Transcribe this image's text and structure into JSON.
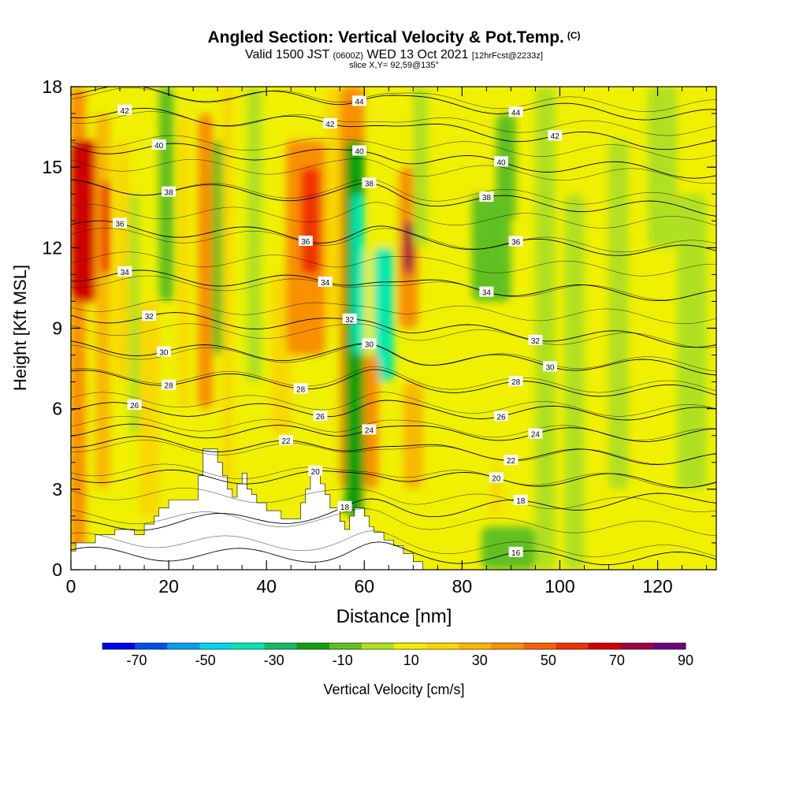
{
  "chart_data": {
    "type": "heatmap",
    "title": "Angled Section: Vertical Velocity & Pot.Temp.",
    "title_suffix": "(C)",
    "subtitle_pre": "Valid 1500 JST",
    "subtitle_utc": "(0600Z)",
    "subtitle_mid": "WED 13 Oct 2021",
    "subtitle_fcst": "[12hrFcst@2233z]",
    "slice_label": "slice X,Y= 92,59@135°",
    "xlabel": "Distance [nm]",
    "ylabel": "Height [Kft MSL]",
    "xlim": [
      0,
      132
    ],
    "ylim": [
      0,
      18
    ],
    "x_ticks": [
      0,
      20,
      40,
      60,
      80,
      100,
      120
    ],
    "y_ticks": [
      0,
      3,
      6,
      9,
      12,
      15,
      18
    ],
    "colorbar": {
      "label": "Vertical Velocity [cm/s]",
      "ticks": [
        -70,
        -50,
        -30,
        -10,
        10,
        30,
        50,
        70,
        90
      ],
      "bounds": [
        -80,
        90
      ],
      "colors": [
        "#0000f0",
        "#0050f0",
        "#00a0f0",
        "#00d8f0",
        "#00e8b0",
        "#10c060",
        "#10a010",
        "#60c020",
        "#b0e020",
        "#f0f000",
        "#f8d800",
        "#f8b800",
        "#f89000",
        "#f86000",
        "#f03000",
        "#d00000",
        "#a00040",
        "#700080"
      ]
    },
    "velocity_field": [
      {
        "xmin": 0,
        "xmax": 3,
        "ymin": 0.8,
        "ymax": 18,
        "value": 40
      },
      {
        "xmin": 0,
        "xmax": 6,
        "ymin": 10,
        "ymax": 16,
        "value": 62
      },
      {
        "xmin": 5,
        "xmax": 8,
        "ymin": 3,
        "ymax": 17,
        "value": 30
      },
      {
        "xmin": 6,
        "xmax": 8,
        "ymin": 11,
        "ymax": 14.5,
        "value": 55
      },
      {
        "xmin": 9,
        "xmax": 12,
        "ymin": 7,
        "ymax": 16,
        "value": 20
      },
      {
        "xmin": 12,
        "xmax": 14,
        "ymin": 5,
        "ymax": 14,
        "value": -3
      },
      {
        "xmin": 14,
        "xmax": 18,
        "ymin": 2,
        "ymax": 10,
        "value": 15
      },
      {
        "xmin": 18,
        "xmax": 21,
        "ymin": 10,
        "ymax": 18,
        "value": -12
      },
      {
        "xmin": 22,
        "xmax": 24,
        "ymin": 6,
        "ymax": 17,
        "value": 20
      },
      {
        "xmin": 26,
        "xmax": 29,
        "ymin": 6,
        "ymax": 17,
        "value": 40
      },
      {
        "xmin": 29,
        "xmax": 31,
        "ymin": 8,
        "ymax": 16,
        "value": -5
      },
      {
        "xmin": 31,
        "xmax": 33,
        "ymin": 3,
        "ymax": 18,
        "value": 15
      },
      {
        "xmin": 36,
        "xmax": 39,
        "ymin": 7,
        "ymax": 18,
        "value": -3
      },
      {
        "xmin": 41,
        "xmax": 45,
        "ymin": 5,
        "ymax": 11,
        "value": 20
      },
      {
        "xmin": 44,
        "xmax": 52,
        "ymin": 8,
        "ymax": 16,
        "value": 40
      },
      {
        "xmin": 47,
        "xmax": 51,
        "ymin": 11,
        "ymax": 15,
        "value": 55
      },
      {
        "xmin": 52,
        "xmax": 55,
        "ymin": 9,
        "ymax": 18,
        "value": 20
      },
      {
        "xmin": 55,
        "xmax": 60,
        "ymin": 3,
        "ymax": 18,
        "value": 35
      },
      {
        "xmin": 56,
        "xmax": 60,
        "ymin": 2,
        "ymax": 16,
        "value": -15
      },
      {
        "xmin": 57.5,
        "xmax": 60,
        "ymin": 8,
        "ymax": 14,
        "value": -35
      },
      {
        "xmin": 60,
        "xmax": 64,
        "ymin": 2,
        "ymax": 12,
        "value": 10
      },
      {
        "xmin": 62,
        "xmax": 66,
        "ymin": 7,
        "ymax": 12,
        "value": -35
      },
      {
        "xmin": 60,
        "xmax": 63,
        "ymin": 3,
        "ymax": 8,
        "value": 40
      },
      {
        "xmin": 62,
        "xmax": 68,
        "ymin": 12,
        "ymax": 18,
        "value": 10
      },
      {
        "xmin": 67,
        "xmax": 71,
        "ymin": 9,
        "ymax": 15,
        "value": 40
      },
      {
        "xmin": 68,
        "xmax": 70,
        "ymin": 11,
        "ymax": 13,
        "value": 75
      },
      {
        "xmin": 68,
        "xmax": 72,
        "ymin": 3,
        "ymax": 7,
        "value": 25
      },
      {
        "xmin": 70,
        "xmax": 73,
        "ymin": 12,
        "ymax": 18,
        "value": -3
      },
      {
        "xmin": 82,
        "xmax": 90,
        "ymin": 10,
        "ymax": 14,
        "value": -12
      },
      {
        "xmin": 87,
        "xmax": 91,
        "ymin": 13,
        "ymax": 17,
        "value": -5
      },
      {
        "xmin": 86,
        "xmax": 88,
        "ymin": 2,
        "ymax": 4,
        "value": 15
      },
      {
        "xmin": 95,
        "xmax": 99,
        "ymin": 0,
        "ymax": 18,
        "value": -3
      },
      {
        "xmin": 101,
        "xmax": 105,
        "ymin": 0,
        "ymax": 14,
        "value": -3
      },
      {
        "xmin": 110,
        "xmax": 114,
        "ymin": 3,
        "ymax": 16,
        "value": -3
      },
      {
        "xmin": 118,
        "xmax": 124,
        "ymin": 12,
        "ymax": 18,
        "value": -3
      },
      {
        "xmin": 124,
        "xmax": 130,
        "ymin": 3,
        "ymax": 14,
        "value": -3
      },
      {
        "xmin": 84,
        "xmax": 95,
        "ymin": 0,
        "ymax": 1.6,
        "value": -5
      }
    ],
    "terrain": [
      [
        0,
        0.7
      ],
      [
        1,
        0.7
      ],
      [
        1,
        1.0
      ],
      [
        5,
        1.0
      ],
      [
        5,
        1.3
      ],
      [
        9,
        1.3
      ],
      [
        9,
        1.5
      ],
      [
        13,
        1.5
      ],
      [
        13,
        1.3
      ],
      [
        15,
        1.3
      ],
      [
        15,
        1.7
      ],
      [
        17,
        1.7
      ],
      [
        17,
        2.0
      ],
      [
        18,
        2.0
      ],
      [
        18,
        2.3
      ],
      [
        20,
        2.3
      ],
      [
        20,
        2.6
      ],
      [
        26,
        2.6
      ],
      [
        26,
        3.5
      ],
      [
        27,
        3.5
      ],
      [
        27,
        4.5
      ],
      [
        30,
        4.5
      ],
      [
        30,
        4.0
      ],
      [
        31,
        4.0
      ],
      [
        31,
        3.5
      ],
      [
        32,
        3.5
      ],
      [
        32,
        3.0
      ],
      [
        33,
        3.0
      ],
      [
        33,
        2.7
      ],
      [
        34,
        2.7
      ],
      [
        34,
        3.2
      ],
      [
        35,
        3.2
      ],
      [
        35,
        3.6
      ],
      [
        36,
        3.6
      ],
      [
        36,
        3.0
      ],
      [
        37,
        3.0
      ],
      [
        37,
        2.8
      ],
      [
        38,
        2.8
      ],
      [
        38,
        2.5
      ],
      [
        40,
        2.5
      ],
      [
        40,
        2.2
      ],
      [
        43,
        2.2
      ],
      [
        43,
        1.9
      ],
      [
        47,
        1.9
      ],
      [
        47,
        2.5
      ],
      [
        48,
        2.5
      ],
      [
        48,
        3.0
      ],
      [
        49,
        3.0
      ],
      [
        49,
        3.6
      ],
      [
        51,
        3.6
      ],
      [
        51,
        3.2
      ],
      [
        52,
        3.2
      ],
      [
        52,
        2.8
      ],
      [
        53,
        2.8
      ],
      [
        53,
        2.3
      ],
      [
        55,
        2.3
      ],
      [
        55,
        1.8
      ],
      [
        56,
        1.8
      ],
      [
        56,
        1.5
      ],
      [
        57,
        1.5
      ],
      [
        57,
        2.0
      ],
      [
        58,
        2.0
      ],
      [
        58,
        2.3
      ],
      [
        60,
        2.3
      ],
      [
        60,
        2.0
      ],
      [
        61,
        2.0
      ],
      [
        61,
        1.6
      ],
      [
        62,
        1.6
      ],
      [
        62,
        1.4
      ],
      [
        64,
        1.4
      ],
      [
        64,
        1.1
      ],
      [
        66,
        1.1
      ],
      [
        66,
        0.9
      ],
      [
        68,
        0.9
      ],
      [
        68,
        0.6
      ],
      [
        70,
        0.6
      ],
      [
        70,
        0.3
      ],
      [
        72,
        0.3
      ],
      [
        72,
        0
      ],
      [
        132,
        0
      ]
    ],
    "contours": [
      {
        "label": "16",
        "y0": 0.6,
        "y1": 0.4,
        "label_x": 91
      },
      {
        "label": "18",
        "y0": 1.6,
        "y1": 2.7,
        "label_x": 56
      },
      {
        "label": "18",
        "y0": 1.6,
        "y1": 2.7,
        "label_x": 92
      },
      {
        "label": "20",
        "y0": 3.5,
        "y1": 3.3,
        "label_x": 50
      },
      {
        "label": "20",
        "y0": 3.5,
        "y1": 3.3,
        "label_x": 87
      },
      {
        "label": "22",
        "y0": 4.8,
        "y1": 4.1,
        "label_x": 44
      },
      {
        "label": "22",
        "y0": 4.8,
        "y1": 4.1,
        "label_x": 90
      },
      {
        "label": "24",
        "y0": 5.2,
        "y1": 5.0,
        "label_x": 61
      },
      {
        "label": "24",
        "y0": 5.2,
        "y1": 5.0,
        "label_x": 95
      },
      {
        "label": "26",
        "y0": 6.0,
        "y1": 5.8,
        "label_x": 13
      },
      {
        "label": "26",
        "y0": 6.0,
        "y1": 5.8,
        "label_x": 51
      },
      {
        "label": "26",
        "y0": 6.0,
        "y1": 5.8,
        "label_x": 88
      },
      {
        "label": "28",
        "y0": 7.2,
        "y1": 6.6,
        "label_x": 20
      },
      {
        "label": "28",
        "y0": 7.2,
        "y1": 6.6,
        "label_x": 47
      },
      {
        "label": "28",
        "y0": 7.2,
        "y1": 6.6,
        "label_x": 91
      },
      {
        "label": "30",
        "y0": 8.3,
        "y1": 7.5,
        "label_x": 19
      },
      {
        "label": "30",
        "y0": 8.3,
        "y1": 7.5,
        "label_x": 61
      },
      {
        "label": "30",
        "y0": 8.3,
        "y1": 7.5,
        "label_x": 98
      },
      {
        "label": "32",
        "y0": 9.5,
        "y1": 8.5,
        "label_x": 16
      },
      {
        "label": "32",
        "y0": 9.5,
        "y1": 8.5,
        "label_x": 57
      },
      {
        "label": "32",
        "y0": 9.5,
        "y1": 8.5,
        "label_x": 95
      },
      {
        "label": "34",
        "y0": 11.0,
        "y1": 10.2,
        "label_x": 11
      },
      {
        "label": "34",
        "y0": 11.0,
        "y1": 10.2,
        "label_x": 52
      },
      {
        "label": "34",
        "y0": 11.0,
        "y1": 10.2,
        "label_x": 85
      },
      {
        "label": "36",
        "y0": 12.8,
        "y1": 11.8,
        "label_x": 10
      },
      {
        "label": "36",
        "y0": 12.8,
        "y1": 11.8,
        "label_x": 48
      },
      {
        "label": "36",
        "y0": 12.8,
        "y1": 11.8,
        "label_x": 91
      },
      {
        "label": "38",
        "y0": 14.3,
        "y1": 13.4,
        "label_x": 20
      },
      {
        "label": "38",
        "y0": 14.3,
        "y1": 13.4,
        "label_x": 61
      },
      {
        "label": "38",
        "y0": 14.3,
        "y1": 13.4,
        "label_x": 85
      },
      {
        "label": "40",
        "y0": 15.8,
        "y1": 14.8,
        "label_x": 18
      },
      {
        "label": "40",
        "y0": 15.8,
        "y1": 14.8,
        "label_x": 59
      },
      {
        "label": "40",
        "y0": 15.8,
        "y1": 14.8,
        "label_x": 88
      },
      {
        "label": "42",
        "y0": 17.1,
        "y1": 15.8,
        "label_x": 11
      },
      {
        "label": "42",
        "y0": 17.1,
        "y1": 15.8,
        "label_x": 53
      },
      {
        "label": "42",
        "y0": 17.1,
        "y1": 15.8,
        "label_x": 99
      },
      {
        "label": "44",
        "y0": 17.9,
        "y1": 16.9,
        "label_x": 59
      },
      {
        "label": "44",
        "y0": 17.9,
        "y1": 16.9,
        "label_x": 91
      }
    ]
  }
}
